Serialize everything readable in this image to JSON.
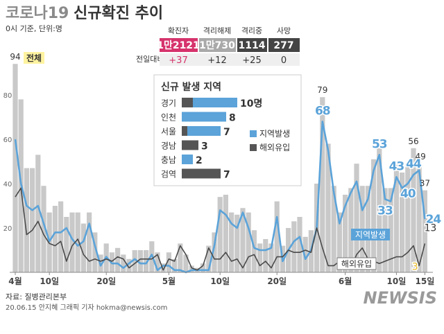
{
  "chart_data": [
    {
      "type": "combo",
      "title_prefix": "코로나19",
      "title": "신규확진 추이",
      "subtitle": "0시 기준, 단위:명",
      "categories": [
        "4월",
        null,
        null,
        null,
        null,
        null,
        "10일",
        null,
        null,
        null,
        null,
        null,
        null,
        null,
        null,
        null,
        "20일",
        null,
        null,
        null,
        null,
        null,
        null,
        null,
        null,
        null,
        null,
        "5월",
        null,
        null,
        null,
        null,
        null,
        null,
        null,
        null,
        "10일",
        null,
        null,
        null,
        null,
        null,
        null,
        null,
        null,
        null,
        "20일",
        null,
        null,
        null,
        null,
        null,
        null,
        null,
        null,
        null,
        null,
        null,
        "6월",
        null,
        null,
        null,
        null,
        null,
        null,
        null,
        null,
        "10일",
        null,
        null,
        null,
        null,
        "15일"
      ],
      "series": [
        {
          "name": "전체",
          "type": "bar",
          "color": "#c9c9c9",
          "values": [
            94,
            78,
            47,
            47,
            53,
            39,
            27,
            30,
            32,
            25,
            27,
            27,
            22,
            27,
            18,
            8,
            13,
            9,
            11,
            8,
            6,
            10,
            10,
            10,
            14,
            9,
            4,
            9,
            6,
            13,
            8,
            3,
            2,
            4,
            12,
            18,
            34,
            35,
            27,
            26,
            29,
            27,
            19,
            13,
            15,
            13,
            32,
            12,
            20,
            23,
            25,
            16,
            19,
            40,
            79,
            58,
            39,
            27,
            35,
            38,
            49,
            39,
            39,
            51,
            57,
            38,
            38,
            50,
            45,
            49,
            56,
            49,
            37
          ]
        },
        {
          "name": "지역발생",
          "type": "line",
          "color": "#5ba3d9",
          "values": [
            60,
            40,
            30,
            28,
            30,
            22,
            14,
            18,
            18,
            20,
            15,
            12,
            14,
            22,
            12,
            3,
            7,
            4,
            4,
            2,
            4,
            6,
            4,
            4,
            8,
            1,
            3,
            3,
            1,
            1,
            0,
            1,
            1,
            1,
            1,
            12,
            28,
            26,
            22,
            20,
            27,
            20,
            11,
            10,
            10,
            11,
            25,
            5,
            10,
            14,
            16,
            6,
            10,
            20,
            68,
            55,
            36,
            22,
            30,
            36,
            41,
            28,
            33,
            46,
            53,
            33,
            32,
            43,
            38,
            40,
            44,
            46,
            24
          ]
        },
        {
          "name": "해외유입",
          "type": "line",
          "color": "#4a4a4a",
          "values": [
            34,
            38,
            17,
            19,
            23,
            17,
            13,
            12,
            14,
            5,
            12,
            15,
            8,
            5,
            6,
            5,
            6,
            5,
            7,
            6,
            2,
            4,
            6,
            6,
            6,
            8,
            1,
            6,
            5,
            12,
            8,
            2,
            1,
            3,
            11,
            6,
            6,
            9,
            5,
            6,
            2,
            7,
            8,
            3,
            5,
            2,
            7,
            7,
            10,
            9,
            9,
            10,
            9,
            20,
            11,
            3,
            3,
            5,
            5,
            2,
            8,
            11,
            6,
            5,
            4,
            5,
            6,
            7,
            7,
            9,
            12,
            3,
            13
          ]
        }
      ],
      "ylim": [
        0,
        100
      ],
      "yticks": [
        20,
        40,
        60,
        80
      ],
      "grid": false
    },
    {
      "type": "bar",
      "orientation": "horizontal",
      "stacked": true,
      "title": "신규 발생 지역",
      "categories": [
        "경기",
        "인천",
        "서울",
        "경남",
        "충남",
        "검역"
      ],
      "series": [
        {
          "name": "해외유입",
          "color": "#555555",
          "values": [
            2,
            0,
            1,
            3,
            0,
            7
          ]
        },
        {
          "name": "지역발생",
          "color": "#5ba3d9",
          "values": [
            8,
            8,
            6,
            0,
            2,
            0
          ]
        }
      ],
      "totals": [
        10,
        8,
        7,
        3,
        2,
        7
      ],
      "total_labels": [
        "10명",
        "8",
        "7",
        "3",
        "2",
        "7"
      ],
      "xlim": [
        0,
        10
      ]
    }
  ],
  "stats": {
    "headers": [
      "확진자",
      "격리해제",
      "격리중",
      "사망"
    ],
    "values": [
      "1만2121",
      "1만730",
      "1114",
      "277"
    ],
    "change_label": "전일대비",
    "changes": [
      "+37",
      "+12",
      "+25",
      "0"
    ]
  },
  "footer": {
    "source": "자료: 질병관리본부",
    "credit": "20.06.15 안지혜 그래픽 기자 hokma@newsis.com",
    "logo": "NEWSIS"
  }
}
